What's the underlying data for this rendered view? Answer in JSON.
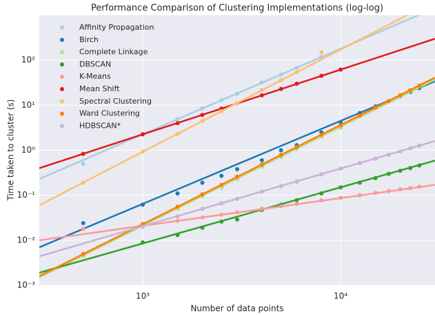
{
  "chart_data": {
    "type": "scatter",
    "title": "Performance Comparison of Clustering Implementations (log-log)",
    "xlabel": "Number of data points",
    "ylabel": "Time taken to cluster (s)",
    "xlog": true,
    "ylog": true,
    "grid": true,
    "legend": "upper left",
    "xlim": [
      300,
      30000
    ],
    "ylim": [
      0.001,
      1000
    ],
    "xticks": [
      {
        "value": 1000,
        "label": "10³"
      },
      {
        "value": 10000,
        "label": "10⁴"
      }
    ],
    "yticks": [
      {
        "value": 0.001,
        "label": "10⁻³"
      },
      {
        "value": 0.01,
        "label": "10⁻²"
      },
      {
        "value": 0.1,
        "label": "10⁻¹"
      },
      {
        "value": 1,
        "label": "10⁰"
      },
      {
        "value": 10,
        "label": "10¹"
      },
      {
        "value": 100,
        "label": "10²"
      }
    ],
    "fit_x": [
      300,
      30000
    ],
    "series": [
      {
        "name": "Affinity Propagation",
        "color": "#a6cee3",
        "x": [
          500,
          1000,
          1500,
          2000,
          2500,
          3000,
          4000,
          5000,
          6000,
          8000
        ],
        "values": [
          0.5,
          2.3,
          4.9,
          8.5,
          13,
          18,
          32,
          48,
          68,
          118
        ],
        "fit": [
          0.23,
          1450
        ]
      },
      {
        "name": "Birch",
        "color": "#1f78b4",
        "x": [
          500,
          1000,
          1500,
          2000,
          2500,
          3000,
          4000,
          5000,
          6000,
          8000,
          10000,
          12500,
          15000,
          17500,
          20000,
          22500,
          25000
        ],
        "values": [
          0.024,
          0.062,
          0.11,
          0.19,
          0.27,
          0.38,
          0.6,
          1.0,
          1.3,
          2.5,
          4.2,
          6.7,
          9.4,
          12.4,
          15.9,
          19.7,
          24
        ],
        "fit": [
          0.007,
          34
        ]
      },
      {
        "name": "Complete Linkage",
        "color": "#b2df8a",
        "x": [
          500,
          1000,
          1500,
          2000,
          2500,
          3000,
          4000,
          5000,
          6000,
          8000,
          10000
        ],
        "values": [
          0.0045,
          0.021,
          0.05,
          0.095,
          0.15,
          0.23,
          0.43,
          0.71,
          1.06,
          2.0,
          3.2
        ],
        "fit": [
          0.0015,
          37
        ]
      },
      {
        "name": "DBSCAN",
        "color": "#33a02c",
        "x": [
          1000,
          1500,
          2000,
          2500,
          3000,
          4000,
          5000,
          6000,
          8000,
          10000,
          12500,
          15000,
          17500,
          20000,
          22500,
          25000
        ],
        "values": [
          0.009,
          0.013,
          0.019,
          0.026,
          0.029,
          0.047,
          0.062,
          0.078,
          0.11,
          0.15,
          0.19,
          0.24,
          0.3,
          0.35,
          0.4,
          0.46
        ],
        "fit": [
          0.0019,
          0.59
        ]
      },
      {
        "name": "K-Means",
        "color": "#fb9a99",
        "x": [
          500,
          1000,
          1500,
          2000,
          2500,
          3000,
          4000,
          5000,
          6000,
          8000,
          10000,
          12500,
          15000,
          17500,
          20000,
          22500,
          25000
        ],
        "values": [
          0.018,
          0.021,
          0.027,
          0.032,
          0.037,
          0.042,
          0.05,
          0.057,
          0.064,
          0.077,
          0.088,
          0.1,
          0.113,
          0.124,
          0.135,
          0.145,
          0.155
        ],
        "fit": [
          0.01,
          0.17
        ]
      },
      {
        "name": "Mean Shift",
        "color": "#e31a1c",
        "x": [
          500,
          1000,
          1500,
          2000,
          2500,
          3000,
          4000,
          5000,
          6000,
          8000,
          10000
        ],
        "values": [
          0.83,
          2.25,
          4.0,
          6.1,
          8.4,
          11,
          16.6,
          23,
          30,
          45,
          62
        ],
        "fit": [
          0.4,
          300
        ]
      },
      {
        "name": "Spectral Clustering",
        "color": "#fdbf6f",
        "x": [
          500,
          1000,
          1500,
          2000,
          2500,
          3000,
          4000,
          5000,
          6000,
          8000
        ],
        "values": [
          0.19,
          0.93,
          2.3,
          4.5,
          7.4,
          11,
          22,
          36,
          54,
          150
        ],
        "fit": [
          0.06,
          2090
        ]
      },
      {
        "name": "Ward Clustering",
        "color": "#ff7f00",
        "x": [
          500,
          1000,
          1500,
          2000,
          2500,
          3000,
          4000,
          5000,
          6000,
          8000,
          10000,
          12500,
          15000,
          17500,
          20000,
          22500,
          25000
        ],
        "values": [
          0.005,
          0.023,
          0.056,
          0.105,
          0.17,
          0.26,
          0.48,
          0.79,
          1.18,
          2.2,
          3.6,
          5.9,
          8.9,
          12.4,
          16.7,
          21.6,
          27.3
        ],
        "fit": [
          0.0016,
          41
        ]
      },
      {
        "name": "HDBSCAN*",
        "color": "#cab2d6",
        "x": [
          1000,
          1500,
          2000,
          2500,
          3000,
          4000,
          5000,
          6000,
          8000,
          10000,
          12500,
          15000,
          17500,
          20000,
          22500,
          25000
        ],
        "values": [
          0.02,
          0.034,
          0.05,
          0.066,
          0.083,
          0.12,
          0.16,
          0.2,
          0.29,
          0.39,
          0.52,
          0.65,
          0.8,
          0.94,
          1.1,
          1.26
        ],
        "fit": [
          0.0044,
          1.6
        ]
      }
    ]
  }
}
